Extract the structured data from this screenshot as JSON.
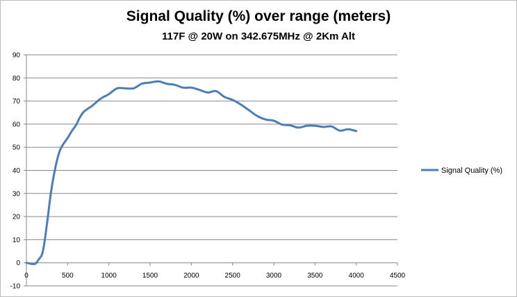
{
  "chart_data": {
    "type": "line",
    "title": "Signal Quality (%) over range (meters)",
    "subtitle": "117F @ 20W on 342.675MHz @ 2Km Alt",
    "xlabel": "",
    "ylabel": "",
    "xlim": [
      0,
      4500
    ],
    "ylim": [
      -10,
      90
    ],
    "x_ticks": [
      0,
      500,
      1000,
      1500,
      2000,
      2500,
      3000,
      3500,
      4000,
      4500
    ],
    "y_ticks": [
      -10,
      0,
      10,
      20,
      30,
      40,
      50,
      60,
      70,
      80,
      90
    ],
    "grid": "horizontal",
    "legend_position": "right",
    "series": [
      {
        "name": "Signal Quality (%)",
        "color": "#4a7ebb",
        "x": [
          0,
          100,
          150,
          200,
          250,
          300,
          350,
          400,
          450,
          500,
          550,
          600,
          650,
          700,
          800,
          900,
          1000,
          1100,
          1200,
          1300,
          1400,
          1500,
          1600,
          1700,
          1800,
          1900,
          2000,
          2100,
          2200,
          2300,
          2400,
          2500,
          2600,
          2700,
          2800,
          2900,
          3000,
          3100,
          3200,
          3300,
          3400,
          3500,
          3600,
          3700,
          3800,
          3900,
          4000
        ],
        "y": [
          0,
          -0.5,
          1.5,
          5,
          17,
          31,
          41,
          48,
          51.5,
          54,
          57,
          59.5,
          63,
          65.5,
          68,
          71,
          73,
          75.5,
          75.5,
          75.5,
          77.5,
          78,
          78.5,
          77.5,
          77,
          75.8,
          75.8,
          74.8,
          73.7,
          74.3,
          71.8,
          70.5,
          68.5,
          66,
          63.5,
          62,
          61.5,
          59.8,
          59.5,
          58.5,
          59.3,
          59.3,
          58.8,
          59,
          57.2,
          57.8,
          57
        ]
      }
    ]
  }
}
